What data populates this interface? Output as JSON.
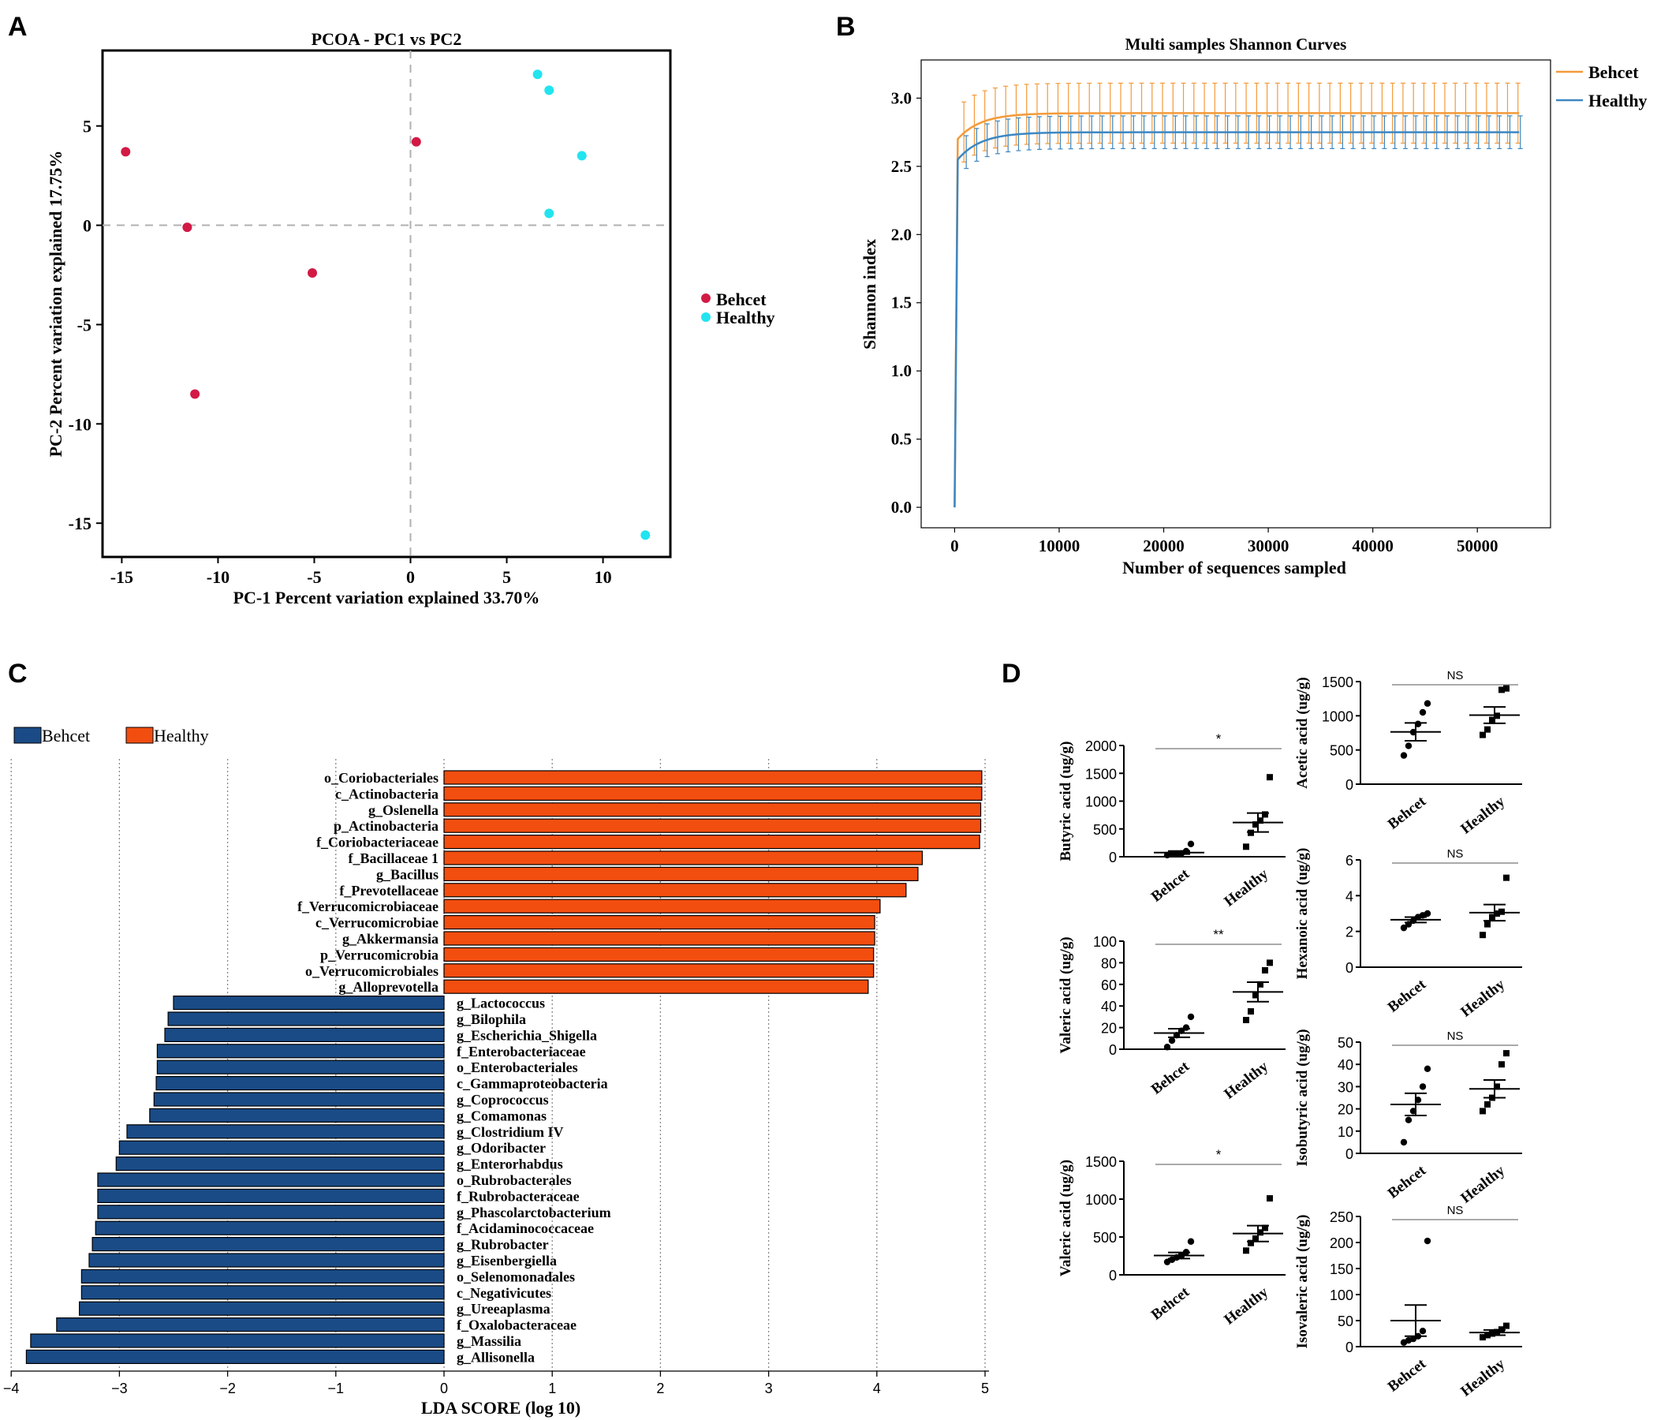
{
  "colors": {
    "behcet_point": "#d21a45",
    "healthy_point": "#22e4ef",
    "behcet_curve": "#f39a3a",
    "healthy_curve": "#3d87c2",
    "lda_behcet": "#1a4b86",
    "lda_healthy": "#f24e10",
    "axis": "#000000",
    "dash": "#b0b0b0"
  },
  "panels": {
    "a": "A",
    "b": "B",
    "c": "C",
    "d": "D"
  },
  "chart_data": [
    {
      "id": "pcoa",
      "type": "scatter",
      "title": "PCOA - PC1 vs PC2",
      "xlabel": "PC-1 Percent variation explained 33.70%",
      "ylabel": "PC-2 Percent variation explained 17.75%",
      "xlim": [
        -16,
        13.5
      ],
      "ylim": [
        -16.7,
        8.8
      ],
      "xticks": [
        -15,
        -10,
        -5,
        0,
        5,
        10
      ],
      "yticks": [
        5,
        0,
        -5,
        -10,
        -15
      ],
      "legend": "right",
      "series": [
        {
          "name": "Behcet",
          "x": [
            -14.8,
            -11.6,
            -5.1,
            0.3,
            -11.2
          ],
          "y": [
            3.7,
            -0.1,
            -2.4,
            4.2,
            -8.5
          ]
        },
        {
          "name": "Healthy",
          "x": [
            6.6,
            7.2,
            8.9,
            7.2,
            12.2
          ],
          "y": [
            7.6,
            6.8,
            3.5,
            0.6,
            -15.6
          ]
        }
      ]
    },
    {
      "id": "shannon",
      "type": "line",
      "title": "Multi samples Shannon Curves",
      "xlabel": "Number of sequences sampled",
      "ylabel": "Shannon index",
      "xlim": [
        -3200,
        57000
      ],
      "ylim": [
        -0.15,
        3.28
      ],
      "xticks": [
        0,
        10000,
        20000,
        30000,
        40000,
        50000
      ],
      "yticks": [
        "0.0",
        "0.5",
        "1.0",
        "1.5",
        "2.0",
        "2.5",
        "3.0"
      ],
      "legend": "top-right outside",
      "series": [
        {
          "name": "Behcet",
          "plateau": 2.89,
          "start": 2.7,
          "err": 0.22
        },
        {
          "name": "Healthy",
          "plateau": 2.75,
          "start": 2.55,
          "err": 0.12
        }
      ],
      "x_max": 54000
    },
    {
      "id": "lda",
      "type": "bar",
      "orientation": "horizontal",
      "xlabel": "LDA SCORE (log 10)",
      "xlim": [
        -4,
        5
      ],
      "xticks": [
        -4,
        -3,
        -2,
        -1,
        0,
        1,
        2,
        3,
        4,
        5
      ],
      "legend": [
        "Behcet",
        "Healthy"
      ],
      "categories": [
        "o_Coriobacteriales",
        "c_Actinobacteria",
        "g_Oslenella",
        "p_Actinobacteria",
        "f_Coriobacteriaceae",
        "f_Bacillaceae 1",
        "g_Bacillus",
        "f_Prevotellaceae",
        "f_Verrucomicrobiaceae",
        "c_Verrucomicrobiae",
        "g_Akkermansia",
        "p_Verrucomicrobia",
        "o_Verrucomicrobiales",
        "g_Alloprevotella",
        "g_Lactococcus",
        "g_Bilophila",
        "g_Escherichia_Shigella",
        "f_Enterobacteriaceae",
        "o_Enterobacteriales",
        "c_Gammaproteobacteria",
        "g_Coprococcus",
        "g_Comamonas",
        "g_Clostridium IV",
        "g_Odoribacter",
        "g_Enterorhabdus",
        "o_Rubrobacterales",
        "f_Rubrobacteraceae",
        "g_Phascolarctobacterium",
        "f_Acidaminococcaceae",
        "g_Rubrobacter",
        "g_Eisenbergiella",
        "o_Selenomonadales",
        "c_Negativicutes",
        "g_Ureeaplasma",
        "f_Oxalobacteraceae",
        "g_Massilia",
        "g_Allisonella"
      ],
      "values": [
        4.97,
        4.97,
        4.96,
        4.96,
        4.95,
        4.42,
        4.38,
        4.27,
        4.03,
        3.98,
        3.98,
        3.97,
        3.97,
        3.92,
        -2.5,
        -2.55,
        -2.58,
        -2.65,
        -2.65,
        -2.66,
        -2.68,
        -2.72,
        -2.93,
        -3.0,
        -3.03,
        -3.2,
        -3.2,
        -3.2,
        -3.22,
        -3.25,
        -3.28,
        -3.35,
        -3.35,
        -3.37,
        -3.58,
        -3.82,
        -3.86
      ],
      "groups": [
        "Healthy",
        "Healthy",
        "Healthy",
        "Healthy",
        "Healthy",
        "Healthy",
        "Healthy",
        "Healthy",
        "Healthy",
        "Healthy",
        "Healthy",
        "Healthy",
        "Healthy",
        "Healthy",
        "Behcet",
        "Behcet",
        "Behcet",
        "Behcet",
        "Behcet",
        "Behcet",
        "Behcet",
        "Behcet",
        "Behcet",
        "Behcet",
        "Behcet",
        "Behcet",
        "Behcet",
        "Behcet",
        "Behcet",
        "Behcet",
        "Behcet",
        "Behcet",
        "Behcet",
        "Behcet",
        "Behcet",
        "Behcet",
        "Behcet"
      ]
    },
    {
      "id": "butyric",
      "type": "scatter",
      "ylabel": "Butyric acid (ug/g)",
      "ylim": [
        0,
        2000
      ],
      "yticks": [
        0,
        500,
        1000,
        1500,
        2000
      ],
      "sig": "*",
      "categories": [
        "Behcet",
        "Healthy"
      ],
      "groups": [
        {
          "name": "Behcet",
          "values": [
            30,
            45,
            55,
            60,
            100,
            230
          ],
          "mean": 75,
          "sem": 28
        },
        {
          "name": "Healthy",
          "values": [
            180,
            430,
            580,
            650,
            760,
            1430
          ],
          "mean": 615,
          "sem": 170
        }
      ]
    },
    {
      "id": "valeric1",
      "type": "scatter",
      "ylabel": "Valeric acid (ug/g)",
      "ylim": [
        0,
        100
      ],
      "yticks": [
        0,
        20,
        40,
        60,
        80,
        100
      ],
      "sig": "**",
      "categories": [
        "Behcet",
        "Healthy"
      ],
      "groups": [
        {
          "name": "Behcet",
          "values": [
            2,
            8,
            13,
            17,
            20,
            30
          ],
          "mean": 15,
          "sem": 4
        },
        {
          "name": "Healthy",
          "values": [
            27,
            35,
            50,
            60,
            73,
            80
          ],
          "mean": 53,
          "sem": 9
        }
      ]
    },
    {
      "id": "valeric2",
      "type": "scatter",
      "ylabel": "Valeric acid (ug/g)",
      "ylim": [
        0,
        1500
      ],
      "yticks": [
        0,
        500,
        1000,
        1500
      ],
      "sig": "*",
      "categories": [
        "Behcet",
        "Healthy"
      ],
      "groups": [
        {
          "name": "Behcet",
          "values": [
            170,
            200,
            230,
            250,
            300,
            440
          ],
          "mean": 255,
          "sem": 40
        },
        {
          "name": "Healthy",
          "values": [
            320,
            420,
            480,
            560,
            620,
            1010
          ],
          "mean": 545,
          "sem": 105
        }
      ]
    },
    {
      "id": "acetic",
      "type": "scatter",
      "ylabel": "Acetic acid (ug/g)",
      "ylim": [
        0,
        1500
      ],
      "yticks": [
        0,
        500,
        1000,
        1500
      ],
      "sig": "NS",
      "categories": [
        "Behcet",
        "Healthy"
      ],
      "groups": [
        {
          "name": "Behcet",
          "values": [
            420,
            560,
            760,
            880,
            1050,
            1180
          ],
          "mean": 765,
          "sem": 130
        },
        {
          "name": "Healthy",
          "values": [
            720,
            800,
            940,
            1000,
            1380,
            1400
          ],
          "mean": 1010,
          "sem": 120
        }
      ]
    },
    {
      "id": "hexanoic",
      "type": "scatter",
      "ylabel": "Hexanoic acid (ug/g)",
      "ylim": [
        0,
        6
      ],
      "yticks": [
        0,
        2,
        4,
        6
      ],
      "sig": "NS",
      "categories": [
        "Behcet",
        "Healthy"
      ],
      "groups": [
        {
          "name": "Behcet",
          "values": [
            2.2,
            2.4,
            2.6,
            2.8,
            2.9,
            3.0
          ],
          "mean": 2.65,
          "sem": 0.15
        },
        {
          "name": "Healthy",
          "values": [
            1.8,
            2.4,
            2.8,
            3.0,
            3.1,
            5.0
          ],
          "mean": 3.05,
          "sem": 0.45
        }
      ]
    },
    {
      "id": "isobutyric",
      "type": "scatter",
      "ylabel": "Isobutyric acid (ug/g)",
      "ylim": [
        0,
        50
      ],
      "yticks": [
        0,
        10,
        20,
        30,
        40,
        50
      ],
      "sig": "NS",
      "categories": [
        "Behcet",
        "Healthy"
      ],
      "groups": [
        {
          "name": "Behcet",
          "values": [
            5,
            15,
            19,
            24,
            30,
            38
          ],
          "mean": 22,
          "sem": 5
        },
        {
          "name": "Healthy",
          "values": [
            19,
            22,
            25,
            30,
            40,
            45
          ],
          "mean": 29,
          "sem": 4
        }
      ]
    },
    {
      "id": "isovaleric",
      "type": "scatter",
      "ylabel": "Isovaleric acid (ug/g)",
      "ylim": [
        0,
        250
      ],
      "yticks": [
        0,
        50,
        100,
        150,
        200,
        250
      ],
      "sig": "NS",
      "categories": [
        "Behcet",
        "Healthy"
      ],
      "groups": [
        {
          "name": "Behcet",
          "values": [
            8,
            12,
            15,
            20,
            30,
            203
          ],
          "mean": 50,
          "sem": 30
        },
        {
          "name": "Healthy",
          "values": [
            18,
            22,
            25,
            28,
            33,
            40
          ],
          "mean": 27,
          "sem": 5
        }
      ]
    }
  ]
}
